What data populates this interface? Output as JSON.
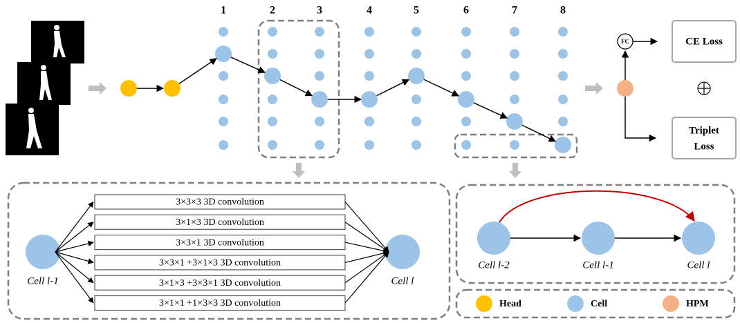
{
  "columns": [
    "1",
    "2",
    "3",
    "4",
    "5",
    "6",
    "7",
    "8"
  ],
  "fc": "FC",
  "ce_loss": "CE Loss",
  "triplet_loss": [
    "Triplet",
    "Loss"
  ],
  "convolutions": [
    "3×3×3 3D convolution",
    "3×1×3 3D convolution",
    "3×3×1 3D convolution",
    "3×3×1 +3×1×3 3D convolution",
    "3×1×3 +3×3×1 3D convolution",
    "3×1×1 +1×3×3 3D convolution"
  ],
  "ops_panel": {
    "input": "Cell l-1",
    "output": "Cell l"
  },
  "cell_panel": {
    "nodes": [
      "Cell l-2",
      "Cell l-1",
      "Cell l"
    ]
  },
  "legend": [
    "Head",
    "Cell",
    "HPM"
  ]
}
